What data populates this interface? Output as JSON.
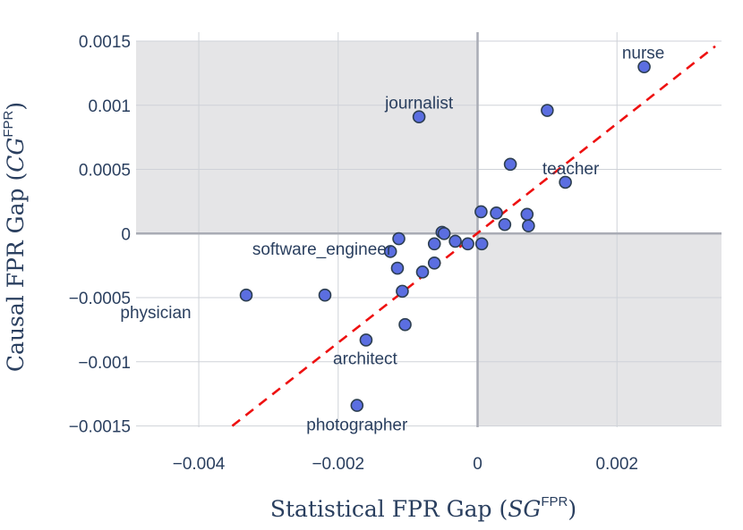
{
  "chart_data": {
    "type": "scatter",
    "title": "",
    "xlabel_main": "Statistical FPR Gap (",
    "xlabel_sym": "SG",
    "xlabel_sup": "FPR",
    "xlabel_end": ")",
    "ylabel_main": "Causal FPR Gap (",
    "ylabel_sym": "CG",
    "ylabel_sup": "FPR",
    "ylabel_end": ")",
    "xlim": [
      -0.0049,
      0.0035
    ],
    "ylim": [
      -0.00151,
      0.00157
    ],
    "grid": true,
    "x_ticks": [
      {
        "value": -0.004,
        "label": "−0.004"
      },
      {
        "value": -0.002,
        "label": "−0.002"
      },
      {
        "value": 0,
        "label": "0"
      },
      {
        "value": 0.002,
        "label": "0.002"
      }
    ],
    "y_ticks": [
      {
        "value": 0.0015,
        "label": "0.0015"
      },
      {
        "value": 0.001,
        "label": "0.001"
      },
      {
        "value": 0.0005,
        "label": "0.0005"
      },
      {
        "value": 0,
        "label": "0"
      },
      {
        "value": -0.0005,
        "label": "−0.0005"
      },
      {
        "value": -0.001,
        "label": "−0.001"
      },
      {
        "value": -0.0015,
        "label": "−0.0015"
      }
    ],
    "shaded_quadrants": [
      "top-left",
      "bottom-right"
    ],
    "reference_line": {
      "style": "dashed",
      "color": "#ee1111",
      "from": [
        -0.00352,
        -0.0015
      ],
      "to": [
        0.00341,
        0.00146
      ]
    },
    "marker_color": "#5b6ee1",
    "marker_edge": "#2c3e50",
    "points": [
      {
        "x": 0.00239,
        "y": 0.0013,
        "label": "nurse"
      },
      {
        "x": -0.00084,
        "y": 0.00091,
        "label": "journalist"
      },
      {
        "x": 0.001,
        "y": 0.00096,
        "label": ""
      },
      {
        "x": 0.00047,
        "y": 0.00054,
        "label": ""
      },
      {
        "x": 0.00126,
        "y": 0.0004,
        "label": "teacher"
      },
      {
        "x": 5e-05,
        "y": 0.00017,
        "label": ""
      },
      {
        "x": 0.00027,
        "y": 0.00016,
        "label": ""
      },
      {
        "x": 0.00071,
        "y": 0.00015,
        "label": ""
      },
      {
        "x": 0.00039,
        "y": 7e-05,
        "label": ""
      },
      {
        "x": 0.00073,
        "y": 6e-05,
        "label": ""
      },
      {
        "x": -0.00051,
        "y": 1e-05,
        "label": ""
      },
      {
        "x": -0.00048,
        "y": 0.0,
        "label": ""
      },
      {
        "x": -0.00113,
        "y": -4e-05,
        "label": ""
      },
      {
        "x": -0.00062,
        "y": -8e-05,
        "label": ""
      },
      {
        "x": -0.00032,
        "y": -6e-05,
        "label": ""
      },
      {
        "x": -0.00014,
        "y": -8e-05,
        "label": ""
      },
      {
        "x": 6e-05,
        "y": -8e-05,
        "label": ""
      },
      {
        "x": -0.00125,
        "y": -0.00014,
        "label": ""
      },
      {
        "x": -0.00062,
        "y": -0.00023,
        "label": ""
      },
      {
        "x": -0.00115,
        "y": -0.00027,
        "label": ""
      },
      {
        "x": -0.00079,
        "y": -0.0003,
        "label": ""
      },
      {
        "x": -0.00108,
        "y": -0.00045,
        "label": ""
      },
      {
        "x": -0.00219,
        "y": -0.00048,
        "label": "software_engineer"
      },
      {
        "x": -0.00332,
        "y": -0.00048,
        "label": "physician"
      },
      {
        "x": -0.00104,
        "y": -0.00071,
        "label": ""
      },
      {
        "x": -0.0016,
        "y": -0.00083,
        "label": "architect"
      },
      {
        "x": -0.00173,
        "y": -0.00134,
        "label": "photographer"
      }
    ]
  }
}
